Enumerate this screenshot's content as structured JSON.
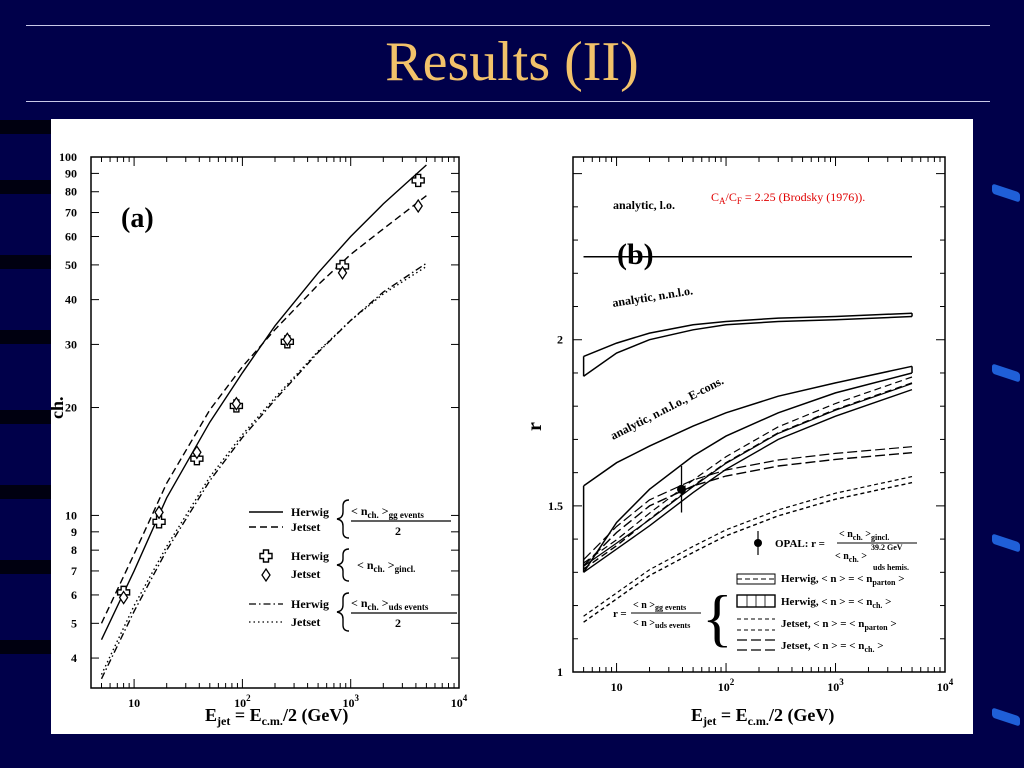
{
  "slide": {
    "title": "Results (II)"
  },
  "colors": {
    "background": "#00004a",
    "title": "#f2c26a",
    "accent": "#1f5fd8",
    "annotation": "#e00000"
  },
  "chart_data": [
    {
      "panel_label": "(a)",
      "type": "line",
      "x_scale": "log",
      "y_scale": "log",
      "xlim": [
        4,
        10000
      ],
      "ylim": [
        3.3,
        100
      ],
      "xlabel": "E_jet = E_c.m./2 (GeV)",
      "ylabel_fragment": "ch.",
      "x_ticks": [
        {
          "v": 10,
          "label": "10"
        },
        {
          "v": 100,
          "label": "10^2"
        },
        {
          "v": 1000,
          "label": "10^3"
        },
        {
          "v": 10000,
          "label": "10^4"
        }
      ],
      "y_ticks": [
        {
          "v": 4,
          "label": "4"
        },
        {
          "v": 5,
          "label": "5"
        },
        {
          "v": 6,
          "label": "6"
        },
        {
          "v": 7,
          "label": "7"
        },
        {
          "v": 8,
          "label": "8"
        },
        {
          "v": 9,
          "label": "9"
        },
        {
          "v": 10,
          "label": "10"
        },
        {
          "v": 20,
          "label": "20"
        },
        {
          "v": 30,
          "label": "30"
        },
        {
          "v": 40,
          "label": "40"
        },
        {
          "v": 50,
          "label": "50"
        },
        {
          "v": 60,
          "label": "60"
        },
        {
          "v": 70,
          "label": "70"
        },
        {
          "v": 80,
          "label": "80"
        },
        {
          "v": 90,
          "label": "90"
        },
        {
          "v": 100,
          "label": "100"
        }
      ],
      "series": [
        {
          "name": "Herwig",
          "style": "solid",
          "x": [
            5,
            10,
            20,
            50,
            100,
            200,
            500,
            1000,
            2000,
            5000
          ],
          "y": [
            4.5,
            7.0,
            11.2,
            18.2,
            25.0,
            33.8,
            47.5,
            60.0,
            74.0,
            95.0
          ]
        },
        {
          "name": "Jetset",
          "style": "dashed",
          "x": [
            5,
            10,
            20,
            50,
            100,
            200,
            500,
            1000,
            2000,
            5000
          ],
          "y": [
            5.0,
            7.8,
            12.3,
            19.7,
            26.0,
            33.0,
            44.0,
            53.5,
            63.0,
            78.0
          ]
        },
        {
          "name": "Herwig",
          "style": "dashdot",
          "x": [
            5,
            10,
            20,
            50,
            100,
            200,
            500,
            1000,
            2000,
            5000
          ],
          "y": [
            3.5,
            5.4,
            8.0,
            12.5,
            16.5,
            21.0,
            28.5,
            35.0,
            42.0,
            50.5
          ]
        },
        {
          "name": "Jetset",
          "style": "dotted",
          "x": [
            5,
            10,
            20,
            50,
            100,
            200,
            500,
            1000,
            2000,
            5000
          ],
          "y": [
            3.6,
            5.6,
            8.2,
            12.8,
            16.8,
            21.3,
            28.7,
            35.0,
            41.5,
            49.5
          ]
        },
        {
          "name": "Herwig",
          "style": "cross",
          "x": [
            8,
            17,
            38,
            88,
            260,
            840,
            4200
          ],
          "y": [
            6.1,
            9.6,
            14.4,
            20.2,
            30.5,
            49.5,
            86.0
          ]
        },
        {
          "name": "Jetset",
          "style": "diamond",
          "x": [
            8,
            17,
            38,
            88,
            260,
            840,
            4200
          ],
          "y": [
            5.9,
            10.2,
            15.0,
            20.5,
            31.0,
            47.5,
            73.0
          ]
        }
      ],
      "legend": [
        {
          "generator": "Herwig",
          "style": "solid"
        },
        {
          "generator": "Jetset",
          "style": "dashed"
        },
        {
          "generator": "Herwig",
          "style": "cross"
        },
        {
          "generator": "Jetset",
          "style": "diamond"
        },
        {
          "generator": "Herwig",
          "style": "dashdot"
        },
        {
          "generator": "Jetset",
          "style": "dotted"
        }
      ],
      "legend_formulas": {
        "gg_num": "< n",
        "gg_sub": "ch.",
        "gg_rest": " >",
        "gg_events": "gg events",
        "denominator": "2",
        "gincl_text": "< n",
        "gincl_sub": "ch.",
        "gincl_rest": " >",
        "gincl_events": "gincl.",
        "uds_num": "< n",
        "uds_sub": "ch.",
        "uds_rest": " >",
        "uds_events": "uds events"
      }
    },
    {
      "panel_label": "(b)",
      "type": "line",
      "x_scale": "log",
      "y_scale": "linear",
      "xlim": [
        4,
        10000
      ],
      "ylim": [
        1.0,
        2.55
      ],
      "xlabel": "E_jet = E_c.m./2 (GeV)",
      "ylabel": "r",
      "x_ticks": [
        {
          "v": 10,
          "label": "10"
        },
        {
          "v": 100,
          "label": "10^2"
        },
        {
          "v": 1000,
          "label": "10^3"
        },
        {
          "v": 10000,
          "label": "10^4"
        }
      ],
      "y_ticks": [
        {
          "v": 1.0,
          "label": "1"
        },
        {
          "v": 1.5,
          "label": "1.5"
        },
        {
          "v": 2.0,
          "label": "2"
        }
      ],
      "annotation": {
        "prefix": "C",
        "sub_a": "A",
        "mid": "/C",
        "sub_f": "F",
        "suffix": " = 2.25 (Brodsky (1976))."
      },
      "curve_labels": {
        "lo": "analytic, l.o.",
        "nnlo": "analytic, n.n.l.o.",
        "econs": "analytic, n.n.l.o., E-cons."
      },
      "bands": [
        {
          "label": "analytic, l.o.",
          "x": [
            5,
            5000
          ],
          "y_low": [
            2.25,
            2.25
          ],
          "y_high": [
            2.25,
            2.25
          ]
        },
        {
          "label": "analytic, n.n.l.o.",
          "x": [
            5,
            10,
            20,
            50,
            100,
            300,
            1000,
            5000
          ],
          "y_low": [
            1.89,
            1.96,
            2.0,
            2.03,
            2.045,
            2.055,
            2.06,
            2.07
          ],
          "y_high": [
            1.95,
            1.99,
            2.02,
            2.045,
            2.055,
            2.065,
            2.07,
            2.08
          ]
        },
        {
          "label": "analytic, n.n.l.o., E-cons.",
          "x": [
            5,
            10,
            20,
            50,
            100,
            300,
            1000,
            5000
          ],
          "y_low": [
            1.3,
            1.45,
            1.55,
            1.65,
            1.71,
            1.78,
            1.84,
            1.9
          ],
          "y_high": [
            1.56,
            1.63,
            1.68,
            1.74,
            1.78,
            1.83,
            1.87,
            1.92
          ]
        }
      ],
      "mc_curves": [
        {
          "name": "Herwig",
          "style": "dashed",
          "x": [
            5,
            10,
            20,
            50,
            100,
            300,
            1000,
            5000
          ],
          "y": [
            1.31,
            1.38,
            1.46,
            1.56,
            1.63,
            1.72,
            1.79,
            1.87
          ]
        },
        {
          "name": "Herwig",
          "style": "solid",
          "x": [
            5,
            10,
            20,
            50,
            100,
            300,
            1000,
            5000
          ],
          "y": [
            1.3,
            1.37,
            1.44,
            1.54,
            1.61,
            1.7,
            1.77,
            1.85
          ]
        },
        {
          "name": "Jetset",
          "style": "shortdash",
          "x": [
            5,
            10,
            20,
            50,
            100,
            300,
            1000,
            5000
          ],
          "y": [
            1.15,
            1.22,
            1.29,
            1.36,
            1.41,
            1.47,
            1.52,
            1.57
          ]
        },
        {
          "name": "Jetset",
          "style": "longdash",
          "x": [
            5,
            10,
            20,
            50,
            100,
            300,
            1000,
            5000
          ],
          "y": [
            1.32,
            1.42,
            1.5,
            1.56,
            1.59,
            1.62,
            1.64,
            1.66
          ]
        }
      ],
      "opal_point": {
        "x": 39.2,
        "y": 1.55,
        "err": 0.07
      },
      "legend": {
        "opal_label": "OPAL: r =",
        "opal_num": "< n",
        "opal_num_sub": "ch.",
        "opal_num_rest": " >",
        "opal_num_events": "gincl.",
        "opal_den": "< n",
        "opal_den_sub": "ch.",
        "opal_den_rest": " >",
        "opal_den_events": "uds hemis.",
        "opal_energy": "39.2 GeV",
        "r_def_lhs": "r =",
        "r_num": "< n >",
        "r_num_events": "gg events",
        "r_den": "< n >",
        "r_den_events": "uds events",
        "entries": [
          {
            "style": "hatched-band",
            "text": "Herwig, < n > = < n",
            "sub": "parton",
            "tail": " >"
          },
          {
            "style": "vline-band",
            "text": "Herwig, < n > = < n",
            "sub": "ch.",
            "tail": " >"
          },
          {
            "style": "shortdash",
            "text": "Jetset, < n > = < n",
            "sub": "parton",
            "tail": " >"
          },
          {
            "style": "longdash",
            "text": "Jetset, < n > = < n",
            "sub": "ch.",
            "tail": " >"
          }
        ]
      }
    }
  ]
}
